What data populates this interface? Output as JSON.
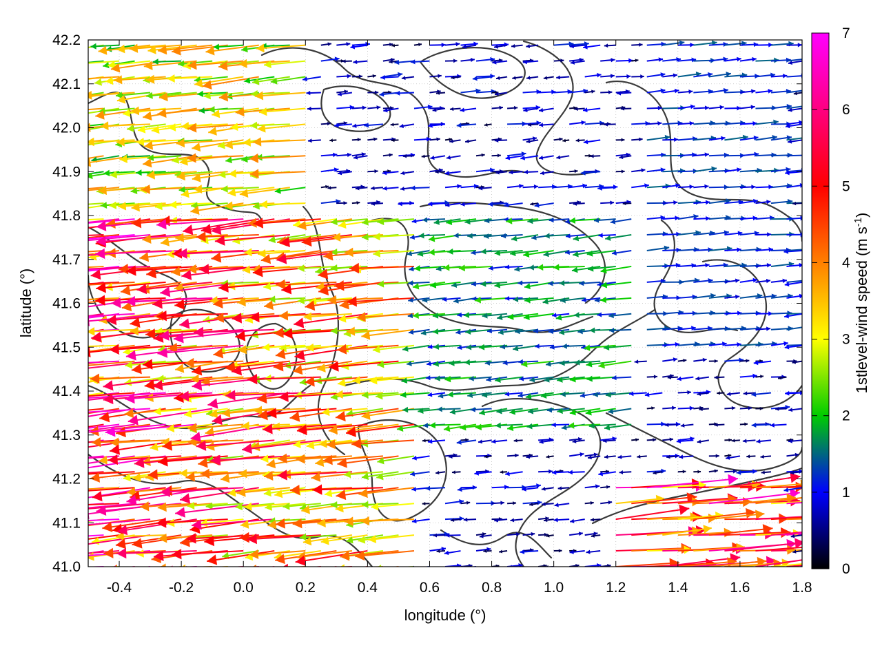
{
  "chart_data": {
    "type": "vector-field",
    "xlabel": "longitude (°)",
    "ylabel": "latitude (°)",
    "xlim": [
      -0.5,
      1.8
    ],
    "ylim": [
      41.0,
      42.2
    ],
    "x_ticks": [
      "-0.4",
      "-0.2",
      "0.0",
      "0.2",
      "0.4",
      "0.6",
      "0.8",
      "1.0",
      "1.2",
      "1.4",
      "1.6",
      "1.8"
    ],
    "x_tick_values": [
      -0.4,
      -0.2,
      0.0,
      0.2,
      0.4,
      0.6,
      0.8,
      1.0,
      1.2,
      1.4,
      1.6,
      1.8
    ],
    "y_ticks": [
      "41.0",
      "41.1",
      "41.2",
      "41.3",
      "41.4",
      "41.5",
      "41.6",
      "41.7",
      "41.8",
      "41.9",
      "42.0",
      "42.1",
      "42.2"
    ],
    "y_tick_values": [
      41.0,
      41.1,
      41.2,
      41.3,
      41.4,
      41.5,
      41.6,
      41.7,
      41.8,
      41.9,
      42.0,
      42.1,
      42.2
    ],
    "grid": true,
    "colorbar": {
      "label": "1stlevel-wind speed (m s",
      "label_sup": "-1",
      "label_end": ")",
      "range": [
        0,
        7
      ],
      "ticks": [
        "0",
        "1",
        "2",
        "3",
        "4",
        "5",
        "6",
        "7"
      ],
      "tick_values": [
        0,
        1,
        2,
        3,
        4,
        5,
        6,
        7
      ],
      "colors": [
        "#000000",
        "#0000ff",
        "#00cc00",
        "#ffff00",
        "#ff8000",
        "#ff0000",
        "#ff00ff"
      ]
    },
    "vector_grid_spacing": {
      "dlon": 0.05,
      "dlat": 0.036
    },
    "wind_regions": [
      {
        "region": "west-central",
        "lon": [
          -0.5,
          0.55
        ],
        "lat": [
          41.0,
          41.8
        ],
        "direction": "westward",
        "speed": [
          2.5,
          6.5
        ]
      },
      {
        "region": "north-west",
        "lon": [
          -0.5,
          0.2
        ],
        "lat": [
          41.8,
          42.2
        ],
        "direction": "westward",
        "speed": [
          1.8,
          4.0
        ]
      },
      {
        "region": "centre",
        "lon": [
          0.55,
          1.3
        ],
        "lat": [
          41.3,
          41.8
        ],
        "direction": "westward",
        "speed": [
          1.0,
          2.2
        ]
      },
      {
        "region": "north-east",
        "lon": [
          1.3,
          1.8
        ],
        "lat": [
          41.5,
          42.2
        ],
        "direction": "eastward",
        "speed": [
          0.8,
          1.5
        ]
      },
      {
        "region": "south-east",
        "lon": [
          1.2,
          1.8
        ],
        "lat": [
          41.0,
          41.2
        ],
        "direction": "eastward",
        "speed": [
          3.0,
          6.8
        ]
      }
    ],
    "contour_levels": "terrain contours (unlabeled)"
  }
}
